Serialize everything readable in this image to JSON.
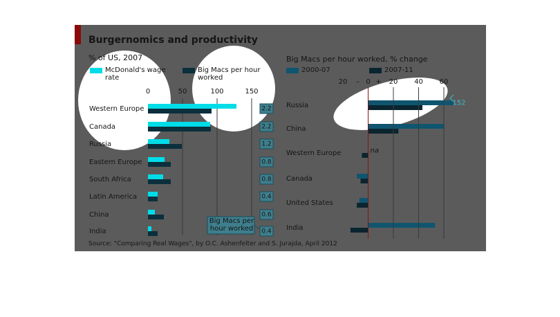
{
  "title": "Burgernomics and productivity",
  "source": "Source: \"Comparing Real Wages\", by O.C. Ashenfelter and S. Jurajda, April 2012",
  "chart_data": [
    {
      "type": "bar",
      "orientation": "horizontal",
      "title": "% of US, 2007",
      "categories": [
        "Western Europe",
        "Canada",
        "Russia",
        "Eastern Europe",
        "South Africa",
        "Latin America",
        "China",
        "India"
      ],
      "series": [
        {
          "name": "McDonald's wage rate",
          "color": "#00dde8",
          "values": [
            128,
            90,
            31,
            24,
            22,
            14,
            10,
            5
          ]
        },
        {
          "name": "Big Macs per hour worked",
          "color": "#0b2f3c",
          "values": [
            92,
            91,
            49,
            33,
            33,
            14,
            23,
            14
          ]
        }
      ],
      "xlim": [
        0,
        150
      ],
      "xticks": [
        0,
        50,
        100,
        150
      ],
      "grid": true,
      "side_label": "Big Macs per hour worked",
      "side_values": [
        2.2,
        2.2,
        1.2,
        0.8,
        0.8,
        0.4,
        0.6,
        0.4
      ]
    },
    {
      "type": "bar",
      "orientation": "horizontal",
      "title": "Big Macs per hour worked, % change",
      "categories": [
        "Russia",
        "China",
        "Western Europe",
        "Canada",
        "United States",
        "India"
      ],
      "series": [
        {
          "name": "2000-07",
          "color": "#0f5570",
          "values": [
            152,
            60,
            null,
            -9,
            -7,
            53
          ],
          "value_labels": [
            "152",
            null,
            "na",
            null,
            null,
            null
          ]
        },
        {
          "name": "2007-11",
          "color": "#0a2530",
          "values": [
            43,
            24,
            -5,
            -6,
            -9,
            -14
          ]
        }
      ],
      "xlim": [
        -20,
        60
      ],
      "xticks": [
        {
          "value": -20,
          "label": "20"
        },
        0,
        20,
        40,
        60
      ],
      "sign_labels": [
        "–",
        "+"
      ],
      "grid": true
    }
  ]
}
